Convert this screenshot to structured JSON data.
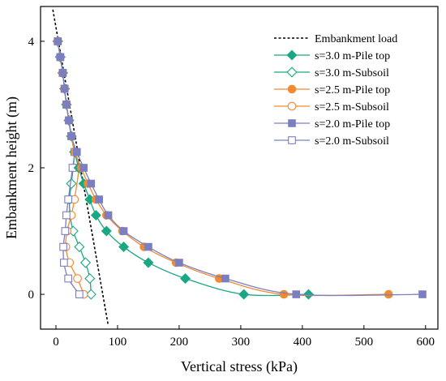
{
  "chart_data": {
    "type": "line",
    "xlabel": "Vertical stress (kPa)",
    "ylabel": "Embankment height (m)",
    "xlim": [
      -25,
      620
    ],
    "ylim": [
      -0.55,
      4.55
    ],
    "x_ticks": [
      0,
      100,
      200,
      300,
      400,
      500,
      600
    ],
    "y_ticks": [
      0,
      2,
      4
    ],
    "x_tick_labels": [
      "0",
      "100",
      "200",
      "300",
      "400",
      "500",
      "600"
    ],
    "y_tick_labels": [
      "0",
      "2",
      "4"
    ],
    "legend_position": "top-right",
    "embankment_load": {
      "name": "Embankment load",
      "color": "#000000",
      "x": [
        -5,
        85
      ],
      "y": [
        4.5,
        -0.5
      ]
    },
    "series": [
      {
        "name": "s=3.0 m-Pile top",
        "color": "#1aa884",
        "marker": "diamond",
        "filled": true,
        "x": [
          3,
          7,
          11,
          14,
          17,
          21,
          25,
          30,
          37,
          45,
          55,
          65,
          82,
          110,
          150,
          210,
          305,
          410
        ],
        "y": [
          4.0,
          3.75,
          3.5,
          3.25,
          3.0,
          2.75,
          2.5,
          2.25,
          2.0,
          1.75,
          1.5,
          1.25,
          1.0,
          0.75,
          0.5,
          0.25,
          0.0,
          0.0
        ]
      },
      {
        "name": "s=3.0 m-Subsoil",
        "color": "#1aa884",
        "marker": "diamond",
        "filled": false,
        "x": [
          3,
          7,
          11,
          14,
          17,
          21,
          25,
          30,
          25,
          22,
          23,
          28,
          38,
          48,
          55,
          57
        ],
        "y": [
          4.0,
          3.75,
          3.5,
          3.25,
          3.0,
          2.75,
          2.5,
          2.25,
          1.75,
          1.5,
          1.25,
          1.0,
          0.75,
          0.5,
          0.25,
          0.0
        ]
      },
      {
        "name": "s=2.5 m-Pile top",
        "color": "#f28a30",
        "marker": "circle",
        "filled": true,
        "x": [
          3,
          7,
          11,
          14,
          17,
          21,
          25,
          31,
          41,
          52,
          65,
          82,
          108,
          143,
          195,
          265,
          370,
          540
        ],
        "y": [
          4.0,
          3.75,
          3.5,
          3.25,
          3.0,
          2.75,
          2.5,
          2.25,
          2.0,
          1.75,
          1.5,
          1.25,
          1.0,
          0.75,
          0.5,
          0.25,
          0.0,
          0.0
        ]
      },
      {
        "name": "s=2.5 m-Subsoil",
        "color": "#f28a30",
        "marker": "circle",
        "filled": false,
        "x": [
          3,
          7,
          11,
          14,
          17,
          21,
          25,
          31,
          37,
          30,
          25,
          18,
          16,
          22,
          35,
          45
        ],
        "y": [
          4.0,
          3.75,
          3.5,
          3.25,
          3.0,
          2.75,
          2.5,
          2.25,
          2.0,
          1.5,
          1.25,
          1.0,
          0.75,
          0.5,
          0.25,
          0.0
        ]
      },
      {
        "name": "s=2.0 m-Pile top",
        "color": "#7b7fc1",
        "marker": "square",
        "filled": true,
        "x": [
          3,
          7,
          11,
          14,
          17,
          21,
          25,
          34,
          45,
          57,
          70,
          85,
          110,
          150,
          200,
          275,
          390,
          595
        ],
        "y": [
          4.0,
          3.75,
          3.5,
          3.25,
          3.0,
          2.75,
          2.5,
          2.25,
          2.0,
          1.75,
          1.5,
          1.25,
          1.0,
          0.75,
          0.5,
          0.25,
          0.0,
          0.0
        ]
      },
      {
        "name": "s=2.0 m-Subsoil",
        "color": "#7b7fc1",
        "marker": "square",
        "filled": false,
        "x": [
          3,
          7,
          11,
          14,
          17,
          21,
          25,
          30,
          27,
          20,
          17,
          15,
          12,
          13,
          20,
          38
        ],
        "y": [
          4.0,
          3.75,
          3.5,
          3.25,
          3.0,
          2.75,
          2.5,
          2.25,
          2.0,
          1.5,
          1.25,
          1.0,
          0.75,
          0.5,
          0.25,
          0.0
        ]
      }
    ]
  }
}
